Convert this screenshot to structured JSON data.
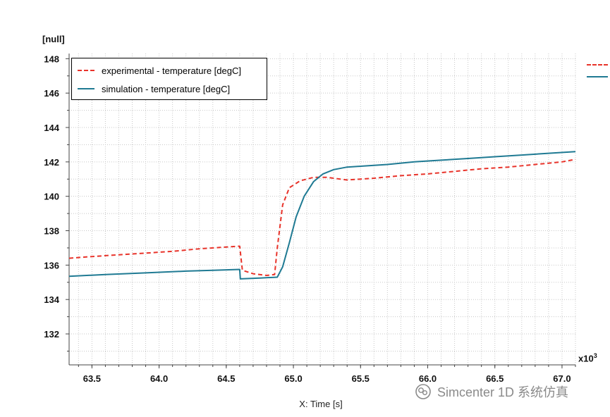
{
  "chart_data": {
    "type": "line",
    "y_unit_label": "[null]",
    "xlabel": "X: Time [s]",
    "x_multiplier": "x10",
    "x_multiplier_exp": "3",
    "xlim": [
      63.33,
      67.1
    ],
    "ylim": [
      130.2,
      148.3
    ],
    "x_ticks": [
      63.5,
      64.0,
      64.5,
      65.0,
      65.5,
      66.0,
      66.5,
      67.0
    ],
    "x_tick_labels": [
      "63.5",
      "64.0",
      "64.5",
      "65.0",
      "65.5",
      "66.0",
      "66.5",
      "67.0"
    ],
    "y_ticks": [
      132,
      134,
      136,
      138,
      140,
      142,
      144,
      146,
      148
    ],
    "y_tick_labels": [
      "132",
      "134",
      "136",
      "138",
      "140",
      "142",
      "144",
      "146",
      "148"
    ],
    "grid": true,
    "legend_position": "top-left",
    "series": [
      {
        "name": "experimental - temperature [degC]",
        "color": "#e8332a",
        "style": "dashed",
        "x": [
          63.33,
          63.5,
          63.7,
          63.9,
          64.1,
          64.3,
          64.5,
          64.6,
          64.62,
          64.7,
          64.8,
          64.86,
          64.88,
          64.92,
          64.97,
          65.05,
          65.15,
          65.25,
          65.4,
          65.6,
          65.8,
          66.0,
          66.2,
          66.4,
          66.6,
          66.8,
          67.0,
          67.1
        ],
        "values": [
          136.4,
          136.5,
          136.6,
          136.7,
          136.8,
          136.95,
          137.05,
          137.1,
          135.7,
          135.5,
          135.4,
          135.45,
          137.0,
          139.5,
          140.5,
          140.9,
          141.1,
          141.1,
          140.95,
          141.05,
          141.2,
          141.3,
          141.45,
          141.6,
          141.7,
          141.85,
          142.0,
          142.15
        ]
      },
      {
        "name": "simulation - temperature [degC]",
        "color": "#1f7a93",
        "style": "solid",
        "x": [
          63.33,
          63.6,
          63.9,
          64.2,
          64.4,
          64.6,
          64.605,
          64.75,
          64.88,
          64.92,
          64.97,
          65.02,
          65.08,
          65.15,
          65.22,
          65.3,
          65.4,
          65.5,
          65.7,
          65.9,
          66.1,
          66.3,
          66.5,
          66.7,
          66.9,
          67.1
        ],
        "values": [
          135.35,
          135.45,
          135.55,
          135.65,
          135.7,
          135.75,
          135.2,
          135.25,
          135.3,
          135.9,
          137.3,
          138.8,
          140.0,
          140.85,
          141.3,
          141.55,
          141.7,
          141.75,
          141.85,
          142.0,
          142.1,
          142.2,
          142.3,
          142.4,
          142.5,
          142.6
        ]
      }
    ]
  }
}
